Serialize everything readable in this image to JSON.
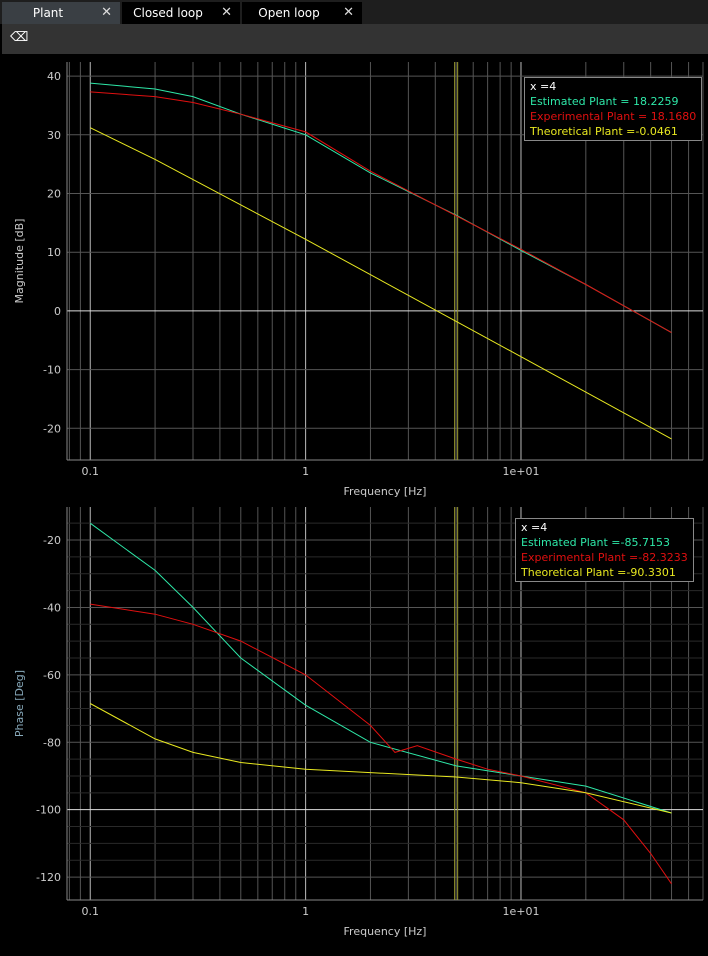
{
  "tabs": [
    {
      "label": "Plant",
      "active": true
    },
    {
      "label": "Closed loop"
    },
    {
      "label": "Open loop"
    }
  ],
  "toolbar": {
    "icon": "eraser-icon"
  },
  "colors": {
    "estimated": "#2ee8a8",
    "experimental": "#e01010",
    "theoretical": "#e8e820"
  },
  "chart_data": [
    {
      "type": "line",
      "title": "",
      "xlabel": "Frequency [Hz]",
      "ylabel": "Magnitude [dB]",
      "xscale": "log",
      "xlim": [
        0.078,
        70
      ],
      "ylim": [
        -25.4,
        42.4
      ],
      "xticks": [
        "0.1",
        "1",
        "1e+01"
      ],
      "yticks": [
        "40",
        "30",
        "20",
        "10",
        "0",
        "-10",
        "-20"
      ],
      "cursor_x": 5,
      "legend": {
        "x": "x =4",
        "entries": [
          "Estimated Plant = 18.2259",
          "Experimental Plant = 18.1680",
          "Theoretical Plant =-0.0461"
        ],
        "placement": "top-right"
      },
      "series": [
        {
          "name": "Estimated Plant",
          "x": [
            0.1,
            0.2,
            0.3,
            0.5,
            1,
            2,
            5,
            10,
            20,
            50
          ],
          "y": [
            38.8,
            37.8,
            36.5,
            33.5,
            30,
            23.5,
            16.3,
            10.3,
            4.5,
            -3.7
          ]
        },
        {
          "name": "Experimental Plant",
          "x": [
            0.1,
            0.2,
            0.3,
            0.5,
            1,
            2,
            5,
            10,
            20,
            50
          ],
          "y": [
            37.3,
            36.5,
            35.5,
            33.5,
            30.5,
            23.8,
            16.2,
            10.5,
            4.5,
            -3.7
          ]
        },
        {
          "name": "Theoretical Plant",
          "x": [
            0.1,
            0.2,
            1,
            10,
            50
          ],
          "y": [
            31.2,
            25.8,
            12.2,
            -7.8,
            -21.8
          ]
        }
      ]
    },
    {
      "type": "line",
      "title": "",
      "xlabel": "Frequency [Hz]",
      "ylabel": "Phase [Deg]",
      "xscale": "log",
      "xlim": [
        0.078,
        70
      ],
      "ylim": [
        -126.8,
        -10.2
      ],
      "xticks": [
        "0.1",
        "1",
        "1e+01"
      ],
      "yticks": [
        "-20",
        "-40",
        "-60",
        "-80",
        "-100",
        "-120"
      ],
      "cursor_x": 5,
      "legend": {
        "x": "x =4",
        "entries": [
          "Estimated Plant =-85.7153",
          "Experimental Plant =-82.3233",
          "Theoretical Plant =-90.3301"
        ],
        "placement": "top-right"
      },
      "series": [
        {
          "name": "Estimated Plant",
          "x": [
            0.1,
            0.2,
            0.3,
            0.5,
            1,
            2,
            5,
            10,
            20,
            50
          ],
          "y": [
            -15,
            -29,
            -40,
            -55,
            -69,
            -80,
            -87,
            -90,
            -93,
            -101
          ]
        },
        {
          "name": "Experimental Plant",
          "x": [
            0.1,
            0.2,
            0.3,
            0.5,
            1,
            2,
            2.6,
            3.3,
            5,
            7,
            10,
            20,
            30,
            40,
            50
          ],
          "y": [
            -39,
            -42,
            -45,
            -50,
            -60,
            -75,
            -83,
            -81,
            -85,
            -88,
            -90,
            -95,
            -103,
            -113,
            -122
          ]
        },
        {
          "name": "Theoretical Plant",
          "x": [
            0.1,
            0.2,
            0.3,
            0.5,
            1,
            2,
            5,
            10,
            20,
            50
          ],
          "y": [
            -68.5,
            -79,
            -83,
            -86,
            -88,
            -89,
            -90.3,
            -92,
            -95,
            -101
          ]
        }
      ]
    }
  ]
}
